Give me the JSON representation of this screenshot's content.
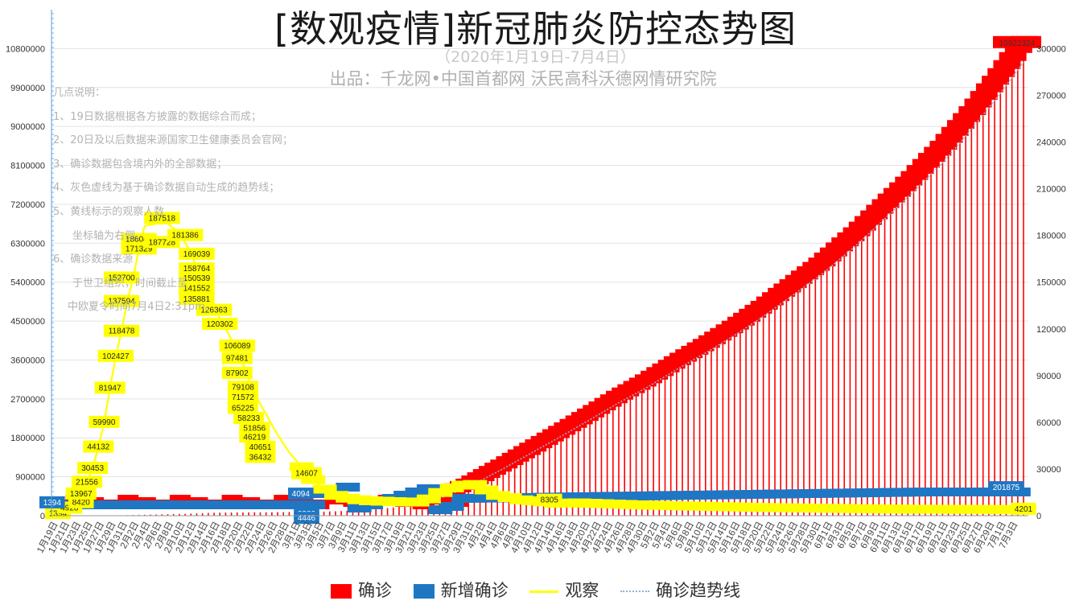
{
  "title": "[数观疫情]新冠肺炎防控态势图",
  "subtitle": "（2020年1月19日-7月4日）",
  "source": "出品：千龙网•中国首都网   沃民高科沃德网情研究院",
  "notes": [
    "几点说明：",
    "1、19日数据根据各方披露的数据综合而成；",
    "2、20日及以后数据来源国家卫生健康委员会官网；",
    "3、确诊数据包含境内外的全部数据；",
    "4、灰色虚线为基于确诊数据自动生成的趋势线；",
    "5、黄线标示的观察人数",
    "坐标轴为右侧。",
    "6、确诊数据来源",
    "于世卫组织，时间截止至",
    "中欧夏令时间7月4日2:31pm。"
  ],
  "legend": {
    "confirmed": "确诊",
    "new": "新增确诊",
    "observe": "观察",
    "trend": "确诊趋势线"
  },
  "colors": {
    "confirmed": "#ff0000",
    "new": "#1f77c4",
    "observe": "#ffff00",
    "trend": "#8fb4d8"
  },
  "chart_data": {
    "type": "bar",
    "left_axis": {
      "ylim": [
        0,
        11700000
      ],
      "ticks": [
        "0",
        "900000",
        "1800000",
        "2700000",
        "3600000",
        "4500000",
        "5400000",
        "6300000",
        "7200000",
        "8100000",
        "9000000",
        "9900000",
        "10800000"
      ]
    },
    "right_axis": {
      "ylim": [
        0,
        325000
      ],
      "ticks": [
        "0",
        "30000",
        "60000",
        "90000",
        "120000",
        "150000",
        "180000",
        "210000",
        "240000",
        "270000",
        "300000"
      ]
    },
    "x_start": "2020-01-19",
    "x_end": "2020-07-04",
    "x_labels": [
      "1月19日",
      "1月21日",
      "1月23日",
      "1月25日",
      "1月27日",
      "1月29日",
      "1月31日",
      "2月2日",
      "2月4日",
      "2月6日",
      "2月8日",
      "2月10日",
      "2月12日",
      "2月14日",
      "2月16日",
      "2月18日",
      "2月20日",
      "2月22日",
      "2月24日",
      "2月26日",
      "2月28日",
      "3月1日",
      "3月3日",
      "3月5日",
      "3月7日",
      "3月9日",
      "3月11日",
      "3月13日",
      "3月15日",
      "3月17日",
      "3月19日",
      "3月21日",
      "3月23日",
      "3月25日",
      "3月27日",
      "3月29日",
      "3月31日",
      "4月2日",
      "4月4日",
      "4月6日",
      "4月8日",
      "4月10日",
      "4月12日",
      "4月14日",
      "4月16日",
      "4月18日",
      "4月20日",
      "4月22日",
      "4月24日",
      "4月26日",
      "4月28日",
      "4月30日",
      "5月2日",
      "5月4日",
      "5月6日",
      "5月8日",
      "5月10日",
      "5月12日",
      "5月14日",
      "5月16日",
      "5月18日",
      "5月20日",
      "5月22日",
      "5月24日",
      "5月26日",
      "5月28日",
      "5月30日",
      "6月1日",
      "6月3日",
      "6月5日",
      "6月7日",
      "6月9日",
      "6月11日",
      "6月13日",
      "6月15日",
      "6月17日",
      "6月19日",
      "6月21日",
      "6月23日",
      "6月25日",
      "6月27日",
      "6月29日",
      "7月1日",
      "7月3日"
    ],
    "series": [
      {
        "name": "确诊",
        "axis": "left",
        "points": [
          [
            "2020-01-19",
            198
          ],
          [
            "2020-01-24",
            1287
          ],
          [
            "2020-01-28",
            5974
          ],
          [
            "2020-02-01",
            14380
          ],
          [
            "2020-02-05",
            28018
          ],
          [
            "2020-02-10",
            42638
          ],
          [
            "2020-02-15",
            68500
          ],
          [
            "2020-02-20",
            75465
          ],
          [
            "2020-02-25",
            80400
          ],
          [
            "2020-03-01",
            87000
          ],
          [
            "2020-03-05",
            95000
          ],
          [
            "2020-03-10",
            115000
          ],
          [
            "2020-03-15",
            155000
          ],
          [
            "2020-03-20",
            245000
          ],
          [
            "2020-03-25",
            415000
          ],
          [
            "2020-03-30",
            690000
          ],
          [
            "2020-04-05",
            1130000
          ],
          [
            "2020-04-10",
            1520000
          ],
          [
            "2020-04-15",
            1910000
          ],
          [
            "2020-04-20",
            2310000
          ],
          [
            "2020-04-25",
            2720000
          ],
          [
            "2020-04-30",
            3100000
          ],
          [
            "2020-05-05",
            3520000
          ],
          [
            "2020-05-10",
            3920000
          ],
          [
            "2020-05-15",
            4340000
          ],
          [
            "2020-05-20",
            4800000
          ],
          [
            "2020-05-25",
            5300000
          ],
          [
            "2020-05-30",
            5800000
          ],
          [
            "2020-06-05",
            6500000
          ],
          [
            "2020-06-10",
            7150000
          ],
          [
            "2020-06-15",
            7800000
          ],
          [
            "2020-06-20",
            8500000
          ],
          [
            "2020-06-25",
            9300000
          ],
          [
            "2020-06-30",
            10180000
          ],
          [
            "2020-07-04",
            10922324
          ]
        ]
      },
      {
        "name": "新增确诊",
        "axis": "left",
        "values_labels": [
          "1394",
          "4094",
          "8380",
          "4446",
          "201875"
        ]
      },
      {
        "name": "观察",
        "axis": "right",
        "points": [
          [
            "2020-01-19",
            1394
          ],
          [
            "2020-01-21",
            4928
          ],
          [
            "2020-01-22",
            8420
          ],
          [
            "2020-01-23",
            13967
          ],
          [
            "2020-01-24",
            21556
          ],
          [
            "2020-01-25",
            30453
          ],
          [
            "2020-01-26",
            44132
          ],
          [
            "2020-01-27",
            59990
          ],
          [
            "2020-01-28",
            81947
          ],
          [
            "2020-01-29",
            102427
          ],
          [
            "2020-01-30",
            118478
          ],
          [
            "2020-01-31",
            137594
          ],
          [
            "2020-02-01",
            152700
          ],
          [
            "2020-02-02",
            171329
          ],
          [
            "2020-02-03",
            186045
          ],
          [
            "2020-02-05",
            187518
          ],
          [
            "2020-02-07",
            187728
          ],
          [
            "2020-02-09",
            181386
          ],
          [
            "2020-02-11",
            169039
          ],
          [
            "2020-02-12",
            158764
          ],
          [
            "2020-02-13",
            150539
          ],
          [
            "2020-02-14",
            141552
          ],
          [
            "2020-02-15",
            135881
          ],
          [
            "2020-02-16",
            126363
          ],
          [
            "2020-02-17",
            120302
          ],
          [
            "2020-02-19",
            106089
          ],
          [
            "2020-02-20",
            97481
          ],
          [
            "2020-02-21",
            87902
          ],
          [
            "2020-02-22",
            79108
          ],
          [
            "2020-02-23",
            71572
          ],
          [
            "2020-02-24",
            65225
          ],
          [
            "2020-02-25",
            58233
          ],
          [
            "2020-02-26",
            51856
          ],
          [
            "2020-02-27",
            46219
          ],
          [
            "2020-02-28",
            40651
          ],
          [
            "2020-02-29",
            36432
          ],
          [
            "2020-03-02",
            27000
          ],
          [
            "2020-03-04",
            20000
          ],
          [
            "2020-03-06",
            14607
          ],
          [
            "2020-03-08",
            12000
          ],
          [
            "2020-03-12",
            10000
          ],
          [
            "2020-03-18",
            9140
          ],
          [
            "2020-03-22",
            8951
          ],
          [
            "2020-03-26",
            17195
          ],
          [
            "2020-03-29",
            19880
          ],
          [
            "2020-03-31",
            20314
          ],
          [
            "2020-04-04",
            13300
          ],
          [
            "2020-04-08",
            10430
          ],
          [
            "2020-04-11",
            9600
          ],
          [
            "2020-04-14",
            8305
          ],
          [
            "2020-04-18",
            8480
          ],
          [
            "2020-04-30",
            7000
          ],
          [
            "2020-05-20",
            5500
          ],
          [
            "2020-06-10",
            4500
          ],
          [
            "2020-06-25",
            4300
          ],
          [
            "2020-07-04",
            4201
          ]
        ]
      },
      {
        "name": "确诊趋势线",
        "axis": "left"
      }
    ],
    "observe_labels": [
      {
        "t": "1394",
        "d": "2020-01-19",
        "v": 1394
      },
      {
        "t": "4928",
        "d": "2020-01-21",
        "v": 4928
      },
      {
        "t": "8420",
        "d": "2020-01-23",
        "v": 8420
      },
      {
        "t": "13967",
        "d": "2020-01-23",
        "v": 13967
      },
      {
        "t": "21556",
        "d": "2020-01-24",
        "v": 21556
      },
      {
        "t": "30453",
        "d": "2020-01-25",
        "v": 30453
      },
      {
        "t": "44132",
        "d": "2020-01-26",
        "v": 44132
      },
      {
        "t": "59990",
        "d": "2020-01-27",
        "v": 59990
      },
      {
        "t": "81947",
        "d": "2020-01-28",
        "v": 81947
      },
      {
        "t": "102427",
        "d": "2020-01-29",
        "v": 102427
      },
      {
        "t": "118478",
        "d": "2020-01-30",
        "v": 118478
      },
      {
        "t": "137594",
        "d": "2020-01-30",
        "v": 137594
      },
      {
        "t": "152700",
        "d": "2020-01-30",
        "v": 152700
      },
      {
        "t": "171329",
        "d": "2020-02-02",
        "v": 171329
      },
      {
        "t": "186045",
        "d": "2020-02-02",
        "v": 177400
      },
      {
        "t": "187518",
        "d": "2020-02-06",
        "v": 191000
      },
      {
        "t": "187728",
        "d": "2020-02-06",
        "v": 175500
      },
      {
        "t": "181386",
        "d": "2020-02-10",
        "v": 180000
      },
      {
        "t": "169039",
        "d": "2020-02-12",
        "v": 168000
      },
      {
        "t": "158764",
        "d": "2020-02-12",
        "v": 158500
      },
      {
        "t": "150539",
        "d": "2020-02-12",
        "v": 152500
      },
      {
        "t": "141552",
        "d": "2020-02-12",
        "v": 146000
      },
      {
        "t": "135881",
        "d": "2020-02-12",
        "v": 139000
      },
      {
        "t": "126363",
        "d": "2020-02-15",
        "v": 132000
      },
      {
        "t": "120302",
        "d": "2020-02-16",
        "v": 123000
      },
      {
        "t": "106089",
        "d": "2020-02-19",
        "v": 109000
      },
      {
        "t": "97481",
        "d": "2020-02-19",
        "v": 101000
      },
      {
        "t": "87902",
        "d": "2020-02-19",
        "v": 91500
      },
      {
        "t": "79108",
        "d": "2020-02-20",
        "v": 82500
      },
      {
        "t": "71572",
        "d": "2020-02-20",
        "v": 76000
      },
      {
        "t": "65225",
        "d": "2020-02-20",
        "v": 69000
      },
      {
        "t": "58233",
        "d": "2020-02-21",
        "v": 62500
      },
      {
        "t": "51856",
        "d": "2020-02-22",
        "v": 56000
      },
      {
        "t": "46219",
        "d": "2020-02-22",
        "v": 50500
      },
      {
        "t": "40651",
        "d": "2020-02-23",
        "v": 44000
      },
      {
        "t": "36432",
        "d": "2020-02-23",
        "v": 37500
      },
      {
        "t": "14607",
        "d": "2020-03-02",
        "v": 27000
      },
      {
        "t": "8305",
        "d": "2020-04-13",
        "v": 10000
      },
      {
        "t": "4201",
        "d": "2020-07-04",
        "v": 4201
      }
    ],
    "new_labels": [
      {
        "t": "1394",
        "d": "2020-01-18",
        "v": 300000
      },
      {
        "t": "4094",
        "d": "2020-03-01",
        "v": 500000
      },
      {
        "t": "8380",
        "d": "2020-03-02",
        "v": 40000
      },
      {
        "t": "4446",
        "d": "2020-03-02",
        "v": -60000
      },
      {
        "t": "201875",
        "d": "2020-07-01",
        "v": 650000
      }
    ],
    "confirmed_last_label": "10922324"
  }
}
